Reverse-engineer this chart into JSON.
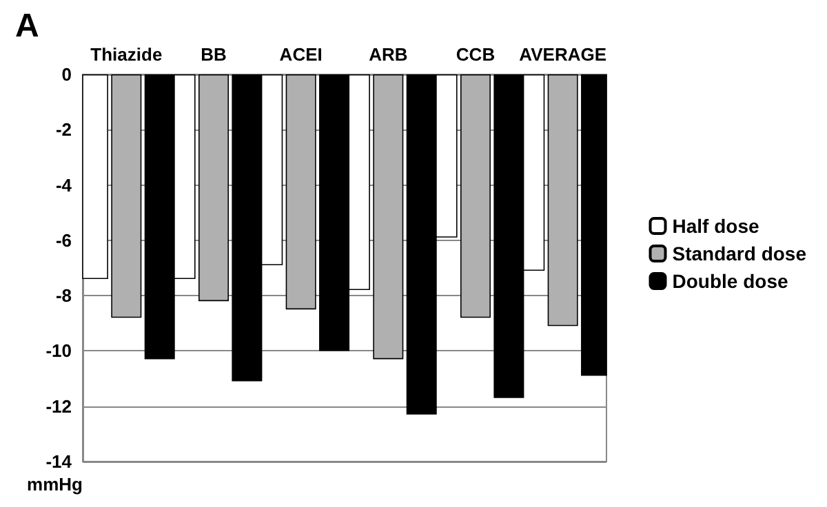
{
  "chart_data": {
    "type": "bar",
    "title": "A",
    "ylabel": "mmHg",
    "categories": [
      "Thiazide",
      "BB",
      "ACEI",
      "ARB",
      "CCB",
      "AVERAGE"
    ],
    "series": [
      {
        "name": "Half dose",
        "color": "#ffffff",
        "values": [
          -7.4,
          -7.4,
          -6.9,
          -7.8,
          -5.9,
          -7.1
        ]
      },
      {
        "name": "Standard dose",
        "color": "#b0b0b0",
        "values": [
          -8.8,
          -8.2,
          -8.5,
          -10.3,
          -8.8,
          -9.1
        ]
      },
      {
        "name": "Double dose",
        "color": "#000000",
        "values": [
          -10.3,
          -11.1,
          -10.0,
          -12.3,
          -11.7,
          -10.9
        ]
      }
    ],
    "ylim": [
      -14,
      0
    ],
    "yticks": [
      -14,
      -12,
      -10,
      -8,
      -6,
      -4,
      -2,
      0
    ],
    "grid": "y",
    "legend": "right"
  }
}
